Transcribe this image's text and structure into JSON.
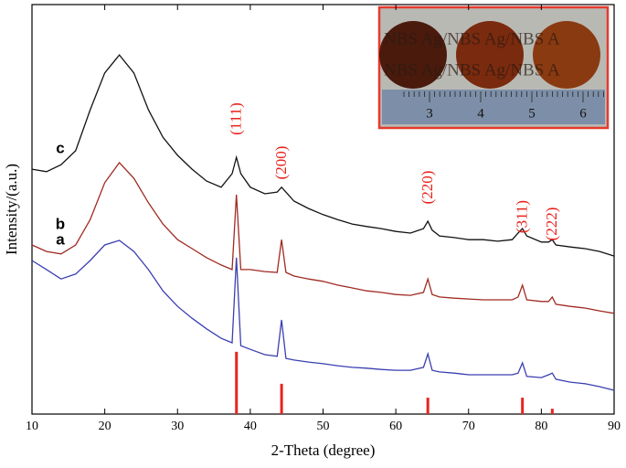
{
  "chart_data": {
    "type": "line",
    "x_label": "2-Theta (degree)",
    "y_label": "Intensity/(a.u.)",
    "x": [
      10,
      12,
      14,
      16,
      18,
      20,
      22,
      24,
      26,
      28,
      30,
      32,
      34,
      36,
      37.5,
      38.1,
      38.7,
      40,
      42,
      43.7,
      44.3,
      44.9,
      46,
      48,
      50,
      52,
      54,
      56,
      58,
      60,
      62,
      63.8,
      64.4,
      65,
      66,
      68,
      70,
      72,
      74,
      76,
      76.8,
      77.4,
      78,
      80,
      81,
      81.5,
      82,
      84,
      86,
      88,
      90
    ],
    "series": [
      {
        "name": "a",
        "color": "#3a3fb0",
        "values": [
          37.5,
          35.3,
          33.0,
          34.2,
          37.5,
          41.3,
          42.4,
          39.7,
          35.3,
          30.1,
          26.3,
          23.4,
          20.8,
          18.5,
          17.4,
          38.2,
          16.7,
          15.8,
          14.5,
          14.1,
          23.0,
          13.6,
          13.2,
          12.7,
          12.3,
          11.8,
          11.4,
          11.2,
          10.9,
          10.7,
          10.7,
          11.4,
          14.7,
          10.7,
          10.3,
          10.0,
          9.6,
          9.6,
          9.6,
          9.6,
          10.0,
          12.5,
          9.2,
          8.9,
          9.6,
          10.0,
          8.5,
          7.8,
          7.4,
          6.7,
          5.8
        ]
      },
      {
        "name": "b",
        "color": "#a02a22",
        "values": [
          41.3,
          39.7,
          39.1,
          41.3,
          47.5,
          56.5,
          61.4,
          57.6,
          51.6,
          46.4,
          42.6,
          40.4,
          38.2,
          36.4,
          35.3,
          53.6,
          35.3,
          35.3,
          34.8,
          34.6,
          42.6,
          34.6,
          33.7,
          33.0,
          32.4,
          31.5,
          30.8,
          30.1,
          29.7,
          29.2,
          29.0,
          29.7,
          33.0,
          29.2,
          28.6,
          28.3,
          28.1,
          27.9,
          27.9,
          27.9,
          28.6,
          31.5,
          27.9,
          27.5,
          27.5,
          28.6,
          26.8,
          26.3,
          25.9,
          25.2,
          24.6
        ]
      },
      {
        "name": "c",
        "color": "#111111",
        "values": [
          59.8,
          59.2,
          60.9,
          64.3,
          74.3,
          83.3,
          87.7,
          83.3,
          74.3,
          67.6,
          63.2,
          59.8,
          56.9,
          55.4,
          58.7,
          62.7,
          58.7,
          55.4,
          53.8,
          54.2,
          55.4,
          54.2,
          52.0,
          50.2,
          48.7,
          47.5,
          46.4,
          45.8,
          45.3,
          44.6,
          44.2,
          45.3,
          47.1,
          44.9,
          43.5,
          43.1,
          42.6,
          42.6,
          42.2,
          42.6,
          44.2,
          45.3,
          43.5,
          42.0,
          42.0,
          42.6,
          41.3,
          40.8,
          40.4,
          39.7,
          38.6
        ]
      }
    ],
    "reference_peaks": {
      "color": "#e8231c",
      "x": [
        38.1,
        44.3,
        64.4,
        77.4,
        81.5
      ],
      "values": [
        15.2,
        7.4,
        4.0,
        4.0,
        1.3
      ],
      "labels": [
        "(111)",
        "(200)",
        "(220)",
        "(311)",
        "(222)"
      ]
    },
    "xlim": [
      10,
      90
    ],
    "xticks": [
      10,
      20,
      30,
      40,
      50,
      60,
      70,
      80,
      90
    ],
    "ylim": [
      0,
      100
    ],
    "inset": {
      "watermark": "NBS Ag/NBS Ag/NBS A",
      "ruler_labels": [
        "3",
        "4",
        "5",
        "6"
      ]
    }
  }
}
